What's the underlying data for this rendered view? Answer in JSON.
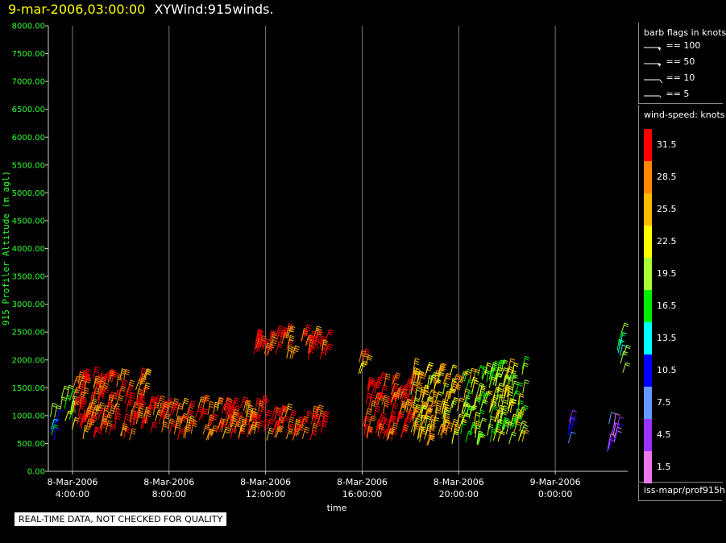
{
  "header": {
    "timestamp": "9-mar-2006,03:00:00",
    "product": "XYWind:915winds."
  },
  "colors": {
    "tick_y": "#33ff33",
    "background": "#000000"
  },
  "chart_data": {
    "type": "scatter",
    "xlabel": "time",
    "ylabel": "915 Profiler Altitude (m agl)",
    "ylim": [
      0,
      8000
    ],
    "yticks": [
      "0.00",
      "500.00",
      "1000.00",
      "1500.00",
      "2000.00",
      "2500.00",
      "3000.00",
      "3500.00",
      "4000.00",
      "4500.00",
      "5000.00",
      "5500.00",
      "6000.00",
      "6500.00",
      "7000.00",
      "7500.00",
      "8000.00"
    ],
    "xlim": [
      "2006-03-08 03:00:00",
      "2006-03-09 03:00:00"
    ],
    "xticks": [
      {
        "date": "8-Mar-2006",
        "time": "4:00:00"
      },
      {
        "date": "8-Mar-2006",
        "time": "8:00:00"
      },
      {
        "date": "8-Mar-2006",
        "time": "12:00:00"
      },
      {
        "date": "8-Mar-2006",
        "time": "16:00:00"
      },
      {
        "date": "8-Mar-2006",
        "time": "20:00:00"
      },
      {
        "date": "9-Mar-2006",
        "time": "0:00:00"
      }
    ],
    "grid": "vertical",
    "series_clusters": [
      {
        "t_start": "03:00",
        "t_end": "03:30",
        "alt_min": 550,
        "alt_max": 1000,
        "speed": 15
      },
      {
        "t_start": "03:30",
        "t_end": "04:00",
        "alt_min": 700,
        "alt_max": 1350,
        "speed": 20
      },
      {
        "t_start": "04:00",
        "t_end": "07:00",
        "alt_min": 550,
        "alt_max": 1650,
        "speed": 31
      },
      {
        "t_start": "07:00",
        "t_end": "12:00",
        "alt_min": 550,
        "alt_max": 1150,
        "speed": 31
      },
      {
        "t_start": "12:00",
        "t_end": "14:30",
        "alt_min": 550,
        "alt_max": 1000,
        "speed": 31
      },
      {
        "t_start": "11:30",
        "t_end": "14:30",
        "alt_min": 2000,
        "alt_max": 2450,
        "speed": 31
      },
      {
        "t_start": "15:50",
        "t_end": "16:10",
        "alt_min": 1750,
        "alt_max": 2000,
        "speed": 28
      },
      {
        "t_start": "16:00",
        "t_end": "18:00",
        "alt_min": 550,
        "alt_max": 1600,
        "speed": 31
      },
      {
        "t_start": "18:00",
        "t_end": "20:00",
        "alt_min": 450,
        "alt_max": 1800,
        "speed": 24
      },
      {
        "t_start": "20:00",
        "t_end": "22:40",
        "alt_min": 450,
        "alt_max": 1850,
        "speed": 20
      },
      {
        "t_start": "00:30",
        "t_end": "00:45",
        "alt_min": 500,
        "alt_max": 900,
        "speed": 8
      },
      {
        "t_start": "02:00",
        "t_end": "02:40",
        "alt_min": 350,
        "alt_max": 850,
        "speed": 6
      },
      {
        "t_start": "02:30",
        "t_end": "02:50",
        "alt_min": 1750,
        "alt_max": 2500,
        "speed": 16
      }
    ]
  },
  "legend": {
    "barb_title": "barb flags in knots",
    "barbs": [
      {
        "label": "== 100"
      },
      {
        "label": "== 50"
      },
      {
        "label": "== 10"
      },
      {
        "label": "== 5"
      }
    ],
    "speed_title": "wind-speed: knots",
    "scale": [
      {
        "label": "31.5",
        "color": "#ff0000"
      },
      {
        "label": "28.5",
        "color": "#ff8800"
      },
      {
        "label": "25.5",
        "color": "#ffbb00"
      },
      {
        "label": "22.5",
        "color": "#ffff00"
      },
      {
        "label": "19.5",
        "color": "#aaff33"
      },
      {
        "label": "16.5",
        "color": "#00ee00"
      },
      {
        "label": "13.5",
        "color": "#00ffff"
      },
      {
        "label": "10.5",
        "color": "#0000ff"
      },
      {
        "label": "7.5",
        "color": "#6699ff"
      },
      {
        "label": "4.5",
        "color": "#9933ff"
      },
      {
        "label": "1.5",
        "color": "#ee77ee"
      }
    ]
  },
  "source_path": "iss-mapr/prof915h",
  "quality_note": "REAL-TIME DATA, NOT CHECKED FOR QUALITY"
}
